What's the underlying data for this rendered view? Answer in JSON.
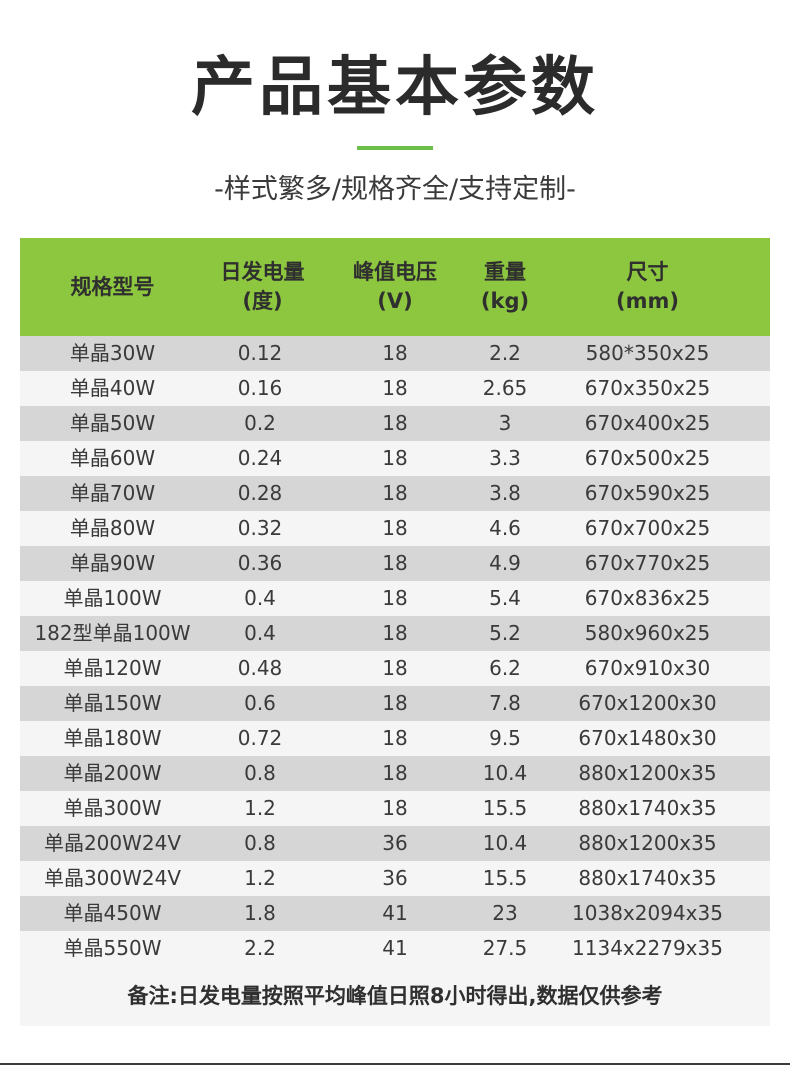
{
  "title": "产品基本参数",
  "subtitle": "-样式繁多/规格齐全/支持定制-",
  "colors": {
    "accent": "#8dc63f",
    "underline": "#6cc04a",
    "row_shade": "#d6d6d6",
    "panel": "#f5f5f5"
  },
  "table": {
    "headers": [
      "规格型号",
      "日发电量\n(度)",
      "峰值电压\n(V)",
      "重量\n(kg)",
      "尺寸\n(mm)"
    ],
    "rows": [
      [
        "单晶30W",
        "0.12",
        "18",
        "2.2",
        "580*350x25"
      ],
      [
        "单晶40W",
        "0.16",
        "18",
        "2.65",
        "670x350x25"
      ],
      [
        "单晶50W",
        "0.2",
        "18",
        "3",
        "670x400x25"
      ],
      [
        "单晶60W",
        "0.24",
        "18",
        "3.3",
        "670x500x25"
      ],
      [
        "单晶70W",
        "0.28",
        "18",
        "3.8",
        "670x590x25"
      ],
      [
        "单晶80W",
        "0.32",
        "18",
        "4.6",
        "670x700x25"
      ],
      [
        "单晶90W",
        "0.36",
        "18",
        "4.9",
        "670x770x25"
      ],
      [
        "单晶100W",
        "0.4",
        "18",
        "5.4",
        "670x836x25"
      ],
      [
        "182型单晶100W",
        "0.4",
        "18",
        "5.2",
        "580x960x25"
      ],
      [
        "单晶120W",
        "0.48",
        "18",
        "6.2",
        "670x910x30"
      ],
      [
        "单晶150W",
        "0.6",
        "18",
        "7.8",
        "670x1200x30"
      ],
      [
        "单晶180W",
        "0.72",
        "18",
        "9.5",
        "670x1480x30"
      ],
      [
        "单晶200W",
        "0.8",
        "18",
        "10.4",
        "880x1200x35"
      ],
      [
        "单晶300W",
        "1.2",
        "18",
        "15.5",
        "880x1740x35"
      ],
      [
        "单晶200W24V",
        "0.8",
        "36",
        "10.4",
        "880x1200x35"
      ],
      [
        "单晶300W24V",
        "1.2",
        "36",
        "15.5",
        "880x1740x35"
      ],
      [
        "单晶450W",
        "1.8",
        "41",
        "23",
        "1038x2094x35"
      ],
      [
        "单晶550W",
        "2.2",
        "41",
        "27.5",
        "1134x2279x35"
      ]
    ]
  },
  "note": "备注:日发电量按照平均峰值日照8小时得出,数据仅供参考"
}
